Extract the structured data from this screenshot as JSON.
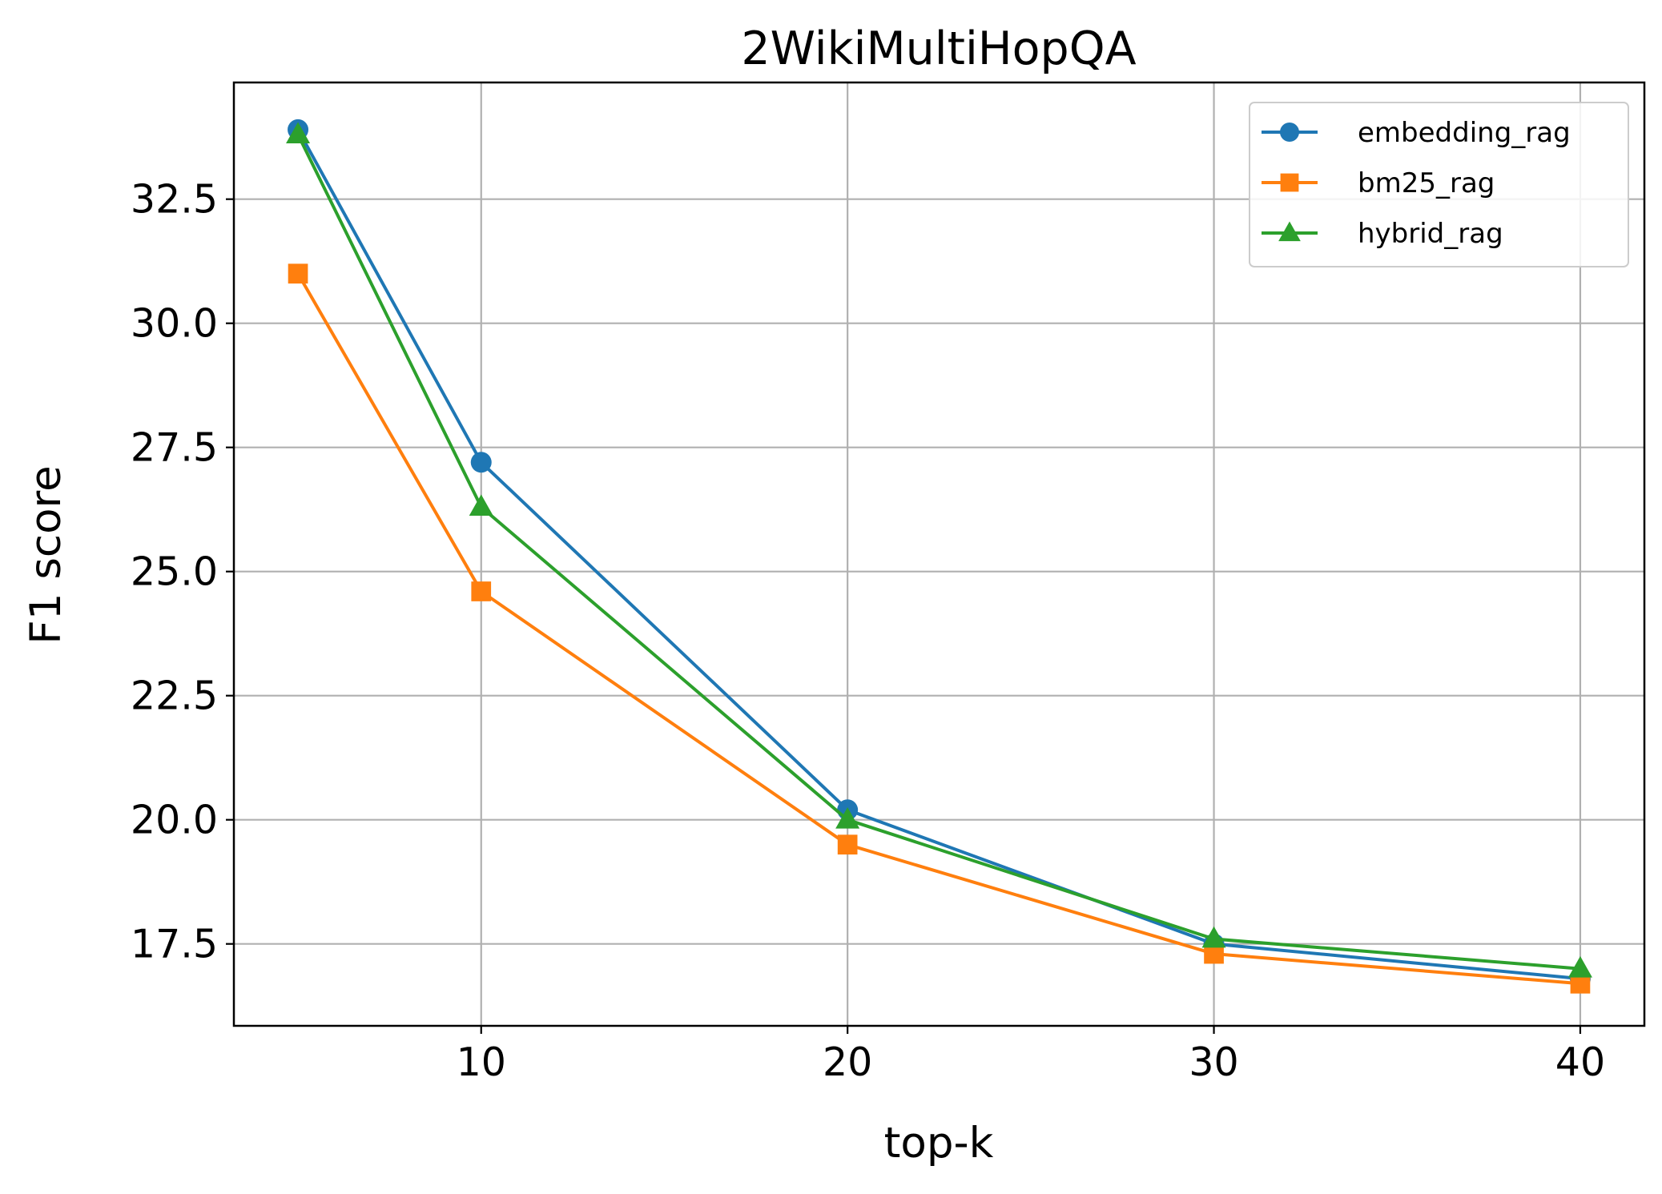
{
  "chart_data": {
    "type": "line",
    "title": "2WikiMultiHopQA",
    "xlabel": "top-k",
    "ylabel": "F1 score",
    "x": [
      5,
      10,
      20,
      30,
      40
    ],
    "xlim": [
      3.25,
      41.75
    ],
    "ylim": [
      15.85,
      34.85
    ],
    "xticks": [
      10,
      20,
      30,
      40
    ],
    "xtick_labels": [
      "10",
      "20",
      "30",
      "40"
    ],
    "yticks": [
      17.5,
      20.0,
      22.5,
      25.0,
      27.5,
      30.0,
      32.5
    ],
    "ytick_labels": [
      "17.5",
      "20.0",
      "22.5",
      "25.0",
      "27.5",
      "30.0",
      "32.5"
    ],
    "grid": true,
    "legend_position": "top-right",
    "series": [
      {
        "name": "embedding_rag",
        "values": [
          33.9,
          27.2,
          20.2,
          17.5,
          16.8
        ],
        "color": "#1f77b4",
        "marker": "circle"
      },
      {
        "name": "bm25_rag",
        "values": [
          31.0,
          24.6,
          19.5,
          17.3,
          16.7
        ],
        "color": "#ff7f0e",
        "marker": "square"
      },
      {
        "name": "hybrid_rag",
        "values": [
          33.8,
          26.3,
          20.0,
          17.6,
          17.0
        ],
        "color": "#2ca02c",
        "marker": "triangle"
      }
    ]
  }
}
